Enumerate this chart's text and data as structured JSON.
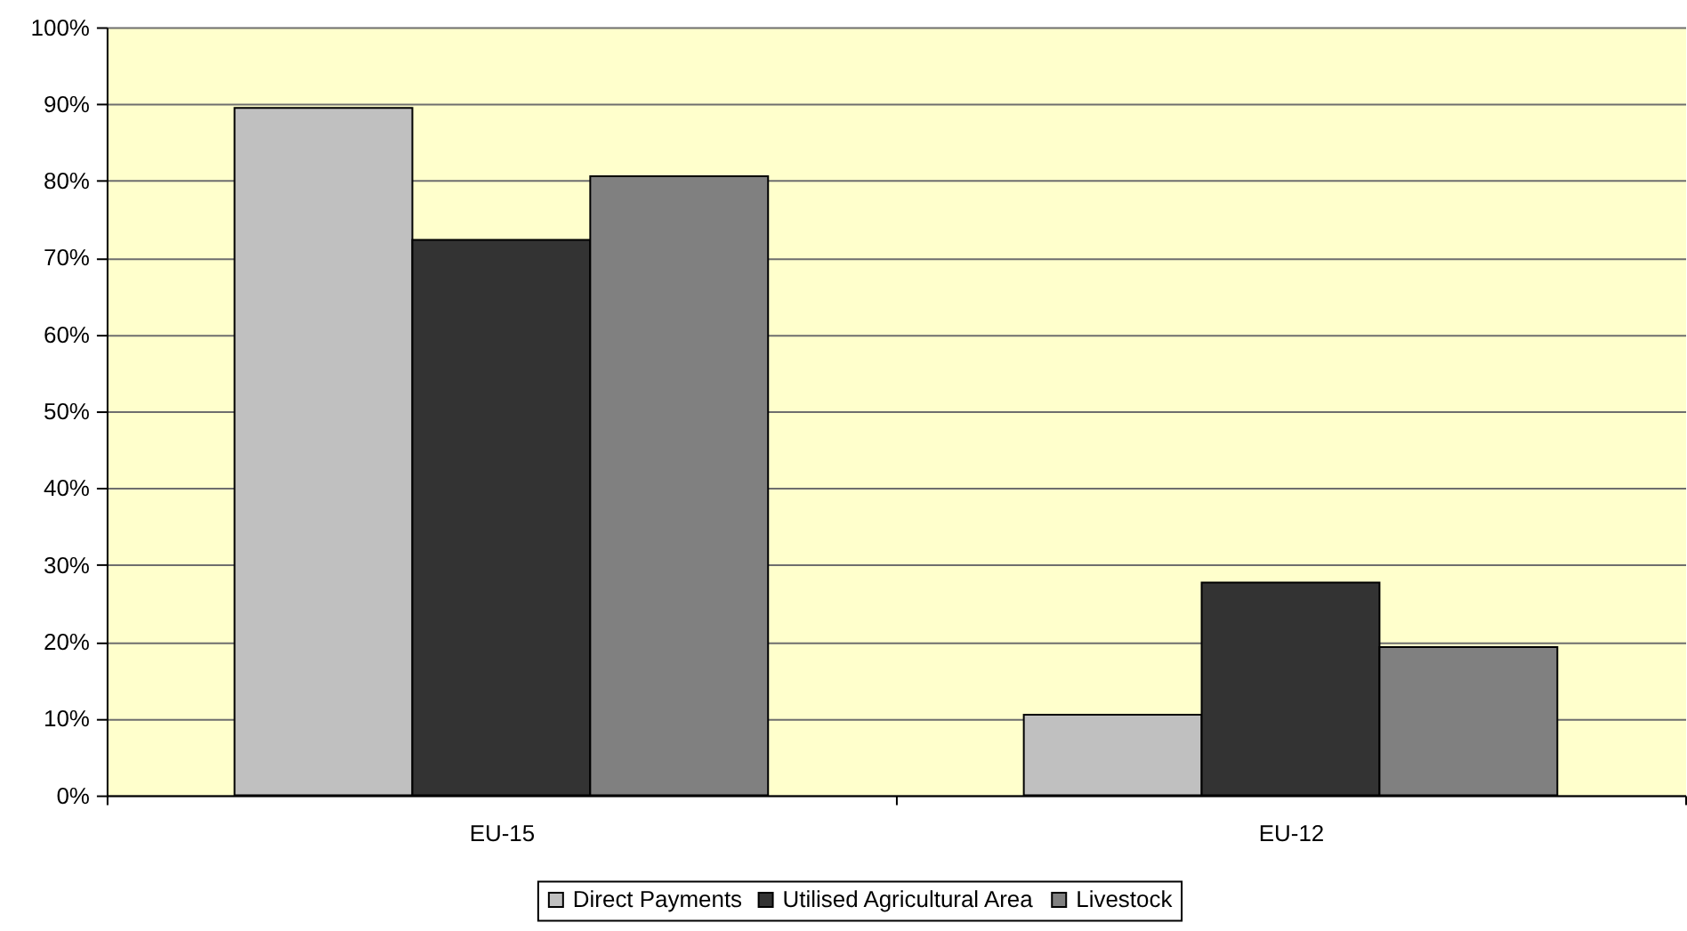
{
  "chart_data": {
    "type": "bar",
    "categories": [
      "EU-15",
      "EU-12"
    ],
    "series": [
      {
        "name": "Direct Payments",
        "color": "#c0c0c0",
        "values": [
          89.5,
          10.5
        ]
      },
      {
        "name": "Utilised Agricultural Area",
        "color": "#333333",
        "values": [
          72.3,
          27.7
        ]
      },
      {
        "name": "Livestock",
        "color": "#808080",
        "values": [
          80.6,
          19.3
        ]
      }
    ],
    "ylim": [
      0,
      100
    ],
    "yticks": [
      {
        "value": 0,
        "label": "0%"
      },
      {
        "value": 10,
        "label": "10%"
      },
      {
        "value": 20,
        "label": "20%"
      },
      {
        "value": 30,
        "label": "30%"
      },
      {
        "value": 40,
        "label": "40%"
      },
      {
        "value": 50,
        "label": "50%"
      },
      {
        "value": 60,
        "label": "60%"
      },
      {
        "value": 70,
        "label": "70%"
      },
      {
        "value": 80,
        "label": "80%"
      },
      {
        "value": 90,
        "label": "90%"
      },
      {
        "value": 100,
        "label": "100%"
      }
    ],
    "grid": "y",
    "legend": "bottom"
  }
}
